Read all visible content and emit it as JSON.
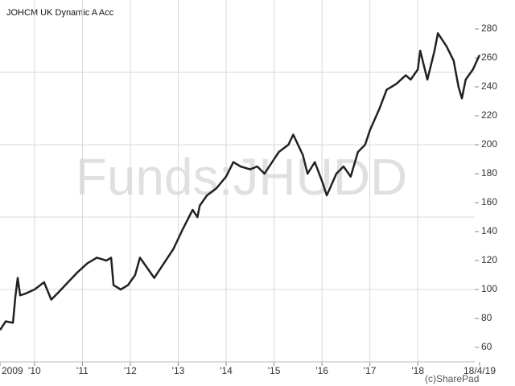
{
  "chart_data": {
    "type": "line",
    "title": "JOHCM UK Dynamic A Acc",
    "watermark": "Funds:JHUDD",
    "credit": "(c)SharePad",
    "series": [
      {
        "name": "JOHCM UK Dynamic A Acc",
        "color": "#222222",
        "x": [
          2009.28,
          2009.4,
          2009.55,
          2009.6,
          2009.65,
          2009.7,
          2009.8,
          2010.0,
          2010.2,
          2010.35,
          2010.5,
          2010.7,
          2010.9,
          2011.1,
          2011.3,
          2011.5,
          2011.6,
          2011.65,
          2011.8,
          2011.95,
          2012.1,
          2012.2,
          2012.35,
          2012.5,
          2012.7,
          2012.9,
          2013.1,
          2013.3,
          2013.4,
          2013.45,
          2013.6,
          2013.8,
          2014.0,
          2014.15,
          2014.3,
          2014.5,
          2014.65,
          2014.8,
          2014.9,
          2015.1,
          2015.3,
          2015.4,
          2015.6,
          2015.7,
          2015.85,
          2016.0,
          2016.1,
          2016.3,
          2016.45,
          2016.6,
          2016.75,
          2016.9,
          2017.0,
          2017.2,
          2017.35,
          2017.55,
          2017.75,
          2017.85,
          2018.0,
          2018.05,
          2018.2,
          2018.35,
          2018.42,
          2018.6,
          2018.75,
          2018.85,
          2018.92,
          2019.0,
          2019.15,
          2019.29
        ],
        "values": [
          72,
          78,
          77,
          95,
          108,
          96,
          97,
          100,
          105,
          93,
          98,
          105,
          112,
          118,
          122,
          120,
          122,
          103,
          100,
          103,
          110,
          122,
          115,
          108,
          118,
          128,
          142,
          155,
          150,
          158,
          165,
          170,
          178,
          188,
          185,
          183,
          185,
          180,
          185,
          195,
          200,
          207,
          193,
          180,
          188,
          175,
          165,
          180,
          185,
          178,
          195,
          200,
          210,
          225,
          238,
          242,
          248,
          245,
          252,
          265,
          245,
          265,
          277,
          268,
          258,
          240,
          232,
          245,
          252,
          262
        ]
      }
    ],
    "xlim": [
      2009.28,
      2019.29
    ],
    "xticks": [
      {
        "value": 2009.28,
        "label": "2009"
      },
      {
        "value": 2010,
        "label": "'10"
      },
      {
        "value": 2011,
        "label": "'11"
      },
      {
        "value": 2012,
        "label": "'12"
      },
      {
        "value": 2013,
        "label": "'13"
      },
      {
        "value": 2014,
        "label": "'14"
      },
      {
        "value": 2015,
        "label": "'15"
      },
      {
        "value": 2016,
        "label": "'16"
      },
      {
        "value": 2017,
        "label": "'17"
      },
      {
        "value": 2018,
        "label": "'18"
      },
      {
        "value": 2019.29,
        "label": "18/4/19"
      }
    ],
    "ylim": [
      50,
      300
    ],
    "yticks": [
      60,
      80,
      100,
      120,
      140,
      160,
      180,
      200,
      220,
      240,
      260,
      280
    ],
    "ygrid": [
      100,
      150,
      200,
      250
    ]
  }
}
